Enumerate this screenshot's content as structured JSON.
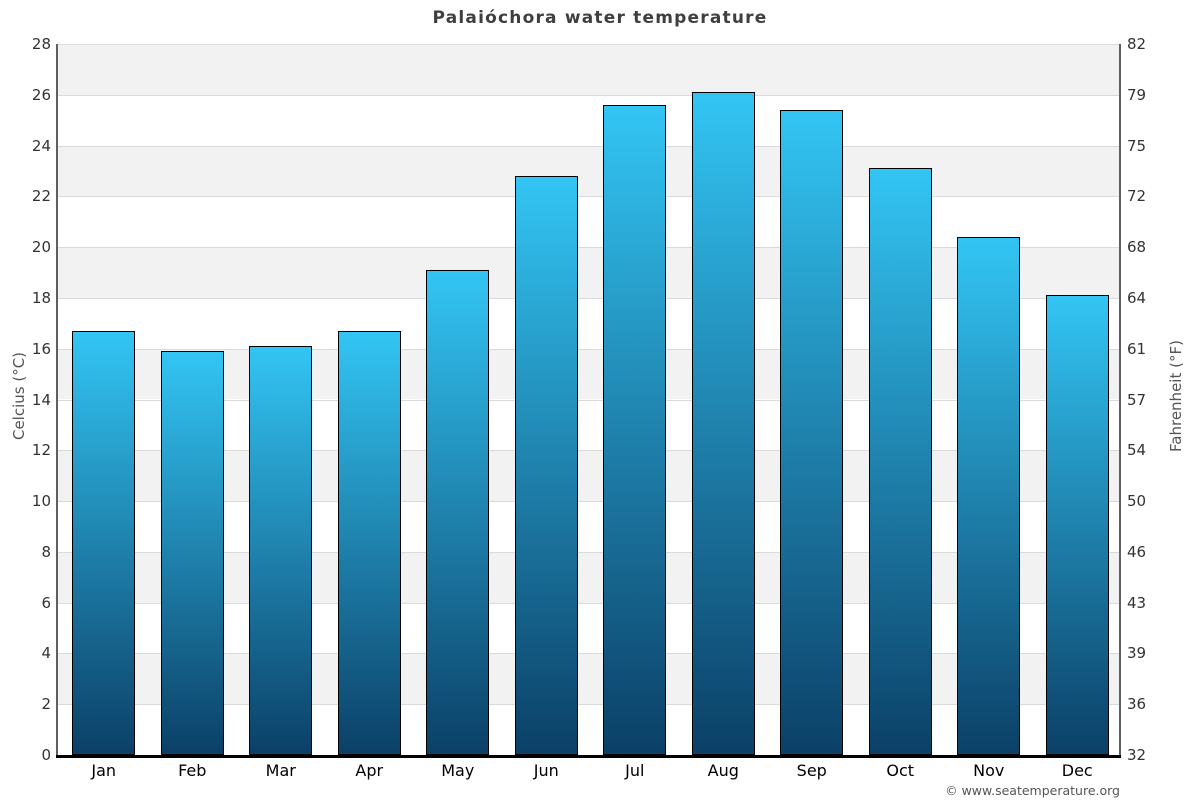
{
  "chart_data": {
    "type": "bar",
    "title": "Palaióchora water temperature",
    "categories": [
      "Jan",
      "Feb",
      "Mar",
      "Apr",
      "May",
      "Jun",
      "Jul",
      "Aug",
      "Sep",
      "Oct",
      "Nov",
      "Dec"
    ],
    "values": [
      16.7,
      15.9,
      16.1,
      16.7,
      19.1,
      22.8,
      25.6,
      26.1,
      25.4,
      23.1,
      20.4,
      18.1
    ],
    "ylabel_left": "Celcius (°C)",
    "ylabel_right": "Fahrenheit (°F)",
    "ylim": [
      0,
      28
    ],
    "ytick_step": 2,
    "yticks_celsius": [
      "0",
      "2",
      "4",
      "6",
      "8",
      "10",
      "12",
      "14",
      "16",
      "18",
      "20",
      "22",
      "24",
      "26",
      "28"
    ],
    "yticks_fahrenheit": [
      "32",
      "36",
      "39",
      "43",
      "46",
      "50",
      "54",
      "57",
      "61",
      "64",
      "68",
      "72",
      "75",
      "79",
      "82"
    ],
    "grid": true,
    "legend": false,
    "copyright": "© www.seatemperature.org",
    "colors": {
      "bar_top": "#33c5f4",
      "bar_bottom": "#0b4067",
      "bar_border": "#000000",
      "band_light": "#ffffff",
      "band_dark": "#f2f2f2",
      "gridline": "#dadada",
      "axis_line": "#5f5f5f",
      "baseline": "#000000",
      "title_color": "#3f3f3f",
      "tick_color": "#333333",
      "month_color": "#000000",
      "axis_title_color": "#555555",
      "copyright_color": "#555555"
    }
  }
}
